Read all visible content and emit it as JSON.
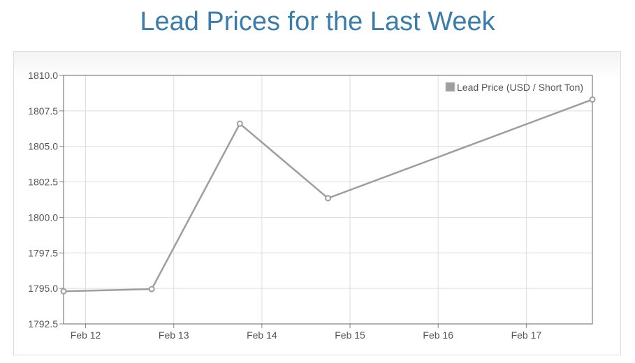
{
  "page": {
    "title": "Lead Prices for the Last Week"
  },
  "chart_data": {
    "type": "line",
    "title": "Lead Prices for the Last Week",
    "xlabel": "",
    "ylabel": "",
    "x_ticks": [
      "Feb 12",
      "Feb 13",
      "Feb 14",
      "Feb 15",
      "Feb 16",
      "Feb 17"
    ],
    "ylim": [
      1792.5,
      1810.0
    ],
    "y_ticks": [
      "1810.0",
      "1807.5",
      "1805.0",
      "1802.5",
      "1800.0",
      "1797.5",
      "1795.0",
      "1792.5"
    ],
    "grid": true,
    "legend_position": "top-right",
    "series": [
      {
        "name": "Lead Price (USD / Short Ton)",
        "color": "#9e9e9e",
        "points": [
          {
            "x": "2018-02-11T18:00",
            "y": 1794.8
          },
          {
            "x": "2018-02-12T18:00",
            "y": 1794.95
          },
          {
            "x": "2018-02-13T18:00",
            "y": 1806.6
          },
          {
            "x": "2018-02-14T18:00",
            "y": 1801.35
          },
          {
            "x": "2018-02-17T18:00",
            "y": 1808.3
          }
        ]
      }
    ]
  }
}
